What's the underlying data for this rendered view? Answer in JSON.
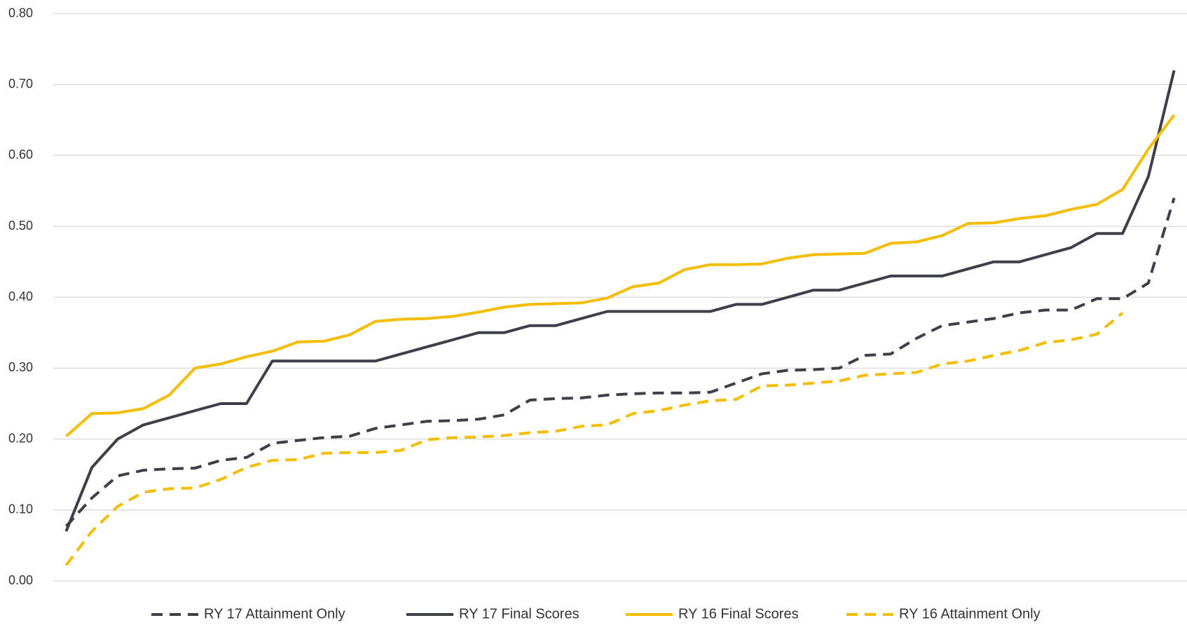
{
  "chart_data": {
    "type": "line",
    "categories": [
      null,
      null,
      null,
      null,
      null,
      null,
      null,
      null,
      null,
      null,
      null,
      null,
      null,
      null,
      null,
      null,
      null,
      null,
      null,
      null,
      null,
      null,
      null,
      null,
      null,
      null,
      null,
      null,
      null,
      null,
      null,
      null,
      null,
      null,
      null,
      null,
      null,
      null,
      null,
      null,
      null,
      null,
      null,
      null
    ],
    "series": [
      {
        "name": "RY 17 Attainment Only",
        "color": "#3f3f4a",
        "dash": "dashed",
        "values": [
          0.077,
          0.117,
          0.148,
          0.156,
          0.158,
          0.159,
          0.17,
          0.174,
          0.194,
          0.198,
          0.202,
          0.204,
          0.215,
          0.22,
          0.225,
          0.226,
          0.228,
          0.234,
          0.255,
          0.257,
          0.258,
          0.262,
          0.264,
          0.265,
          0.265,
          0.266,
          0.279,
          0.292,
          0.297,
          0.298,
          0.3,
          0.318,
          0.32,
          0.342,
          0.36,
          0.365,
          0.37,
          0.378,
          0.382,
          0.382,
          0.398,
          0.398,
          0.42,
          0.54
        ]
      },
      {
        "name": "RY 17 Final Scores",
        "color": "#3f3f4a",
        "dash": "solid",
        "values": [
          0.07,
          0.16,
          0.2,
          0.22,
          0.23,
          0.24,
          0.25,
          0.25,
          0.31,
          0.31,
          0.31,
          0.31,
          0.31,
          0.32,
          0.33,
          0.34,
          0.35,
          0.35,
          0.36,
          0.36,
          0.37,
          0.38,
          0.38,
          0.38,
          0.38,
          0.38,
          0.39,
          0.39,
          0.4,
          0.41,
          0.41,
          0.42,
          0.43,
          0.43,
          0.43,
          0.44,
          0.45,
          0.45,
          0.46,
          0.47,
          0.49,
          0.49,
          0.57,
          0.72
        ]
      },
      {
        "name": "RY 16 Final Scores",
        "color": "#f5bd00",
        "dash": "solid",
        "values": [
          0.204,
          0.236,
          0.237,
          0.243,
          0.262,
          0.3,
          0.306,
          0.316,
          0.324,
          0.337,
          0.338,
          0.347,
          0.366,
          0.369,
          0.37,
          0.373,
          0.379,
          0.386,
          0.39,
          0.391,
          0.392,
          0.399,
          0.415,
          0.42,
          0.439,
          0.446,
          0.446,
          0.447,
          0.455,
          0.46,
          0.461,
          0.462,
          0.476,
          0.478,
          0.487,
          0.504,
          0.505,
          0.511,
          0.515,
          0.524,
          0.531,
          0.552,
          0.609,
          0.657
        ]
      },
      {
        "name": "RY 16 Attainment Only",
        "color": "#f5bd00",
        "dash": "dashed",
        "values": [
          0.022,
          0.07,
          0.105,
          0.125,
          0.13,
          0.131,
          0.143,
          0.16,
          0.17,
          0.171,
          0.18,
          0.181,
          0.181,
          0.184,
          0.199,
          0.202,
          0.203,
          0.205,
          0.209,
          0.211,
          0.218,
          0.22,
          0.236,
          0.24,
          0.248,
          0.254,
          0.256,
          0.275,
          0.276,
          0.279,
          0.282,
          0.29,
          0.292,
          0.294,
          0.306,
          0.31,
          0.318,
          0.325,
          0.336,
          0.34,
          0.348,
          0.378,
          null,
          null
        ]
      }
    ],
    "ylim": [
      0,
      0.8
    ],
    "yticks": [
      {
        "value": 0,
        "label": "0.00"
      },
      {
        "value": 0.1,
        "label": "0.10"
      },
      {
        "value": 0.2,
        "label": "0.20"
      },
      {
        "value": 0.3,
        "label": "0.30"
      },
      {
        "value": 0.4,
        "label": "0.40"
      },
      {
        "value": 0.5,
        "label": "0.50"
      },
      {
        "value": 0.6,
        "label": "0.60"
      },
      {
        "value": 0.7,
        "label": "0.70"
      },
      {
        "value": 0.8,
        "label": "0.80"
      }
    ],
    "grid": true,
    "legend": "bottom"
  }
}
